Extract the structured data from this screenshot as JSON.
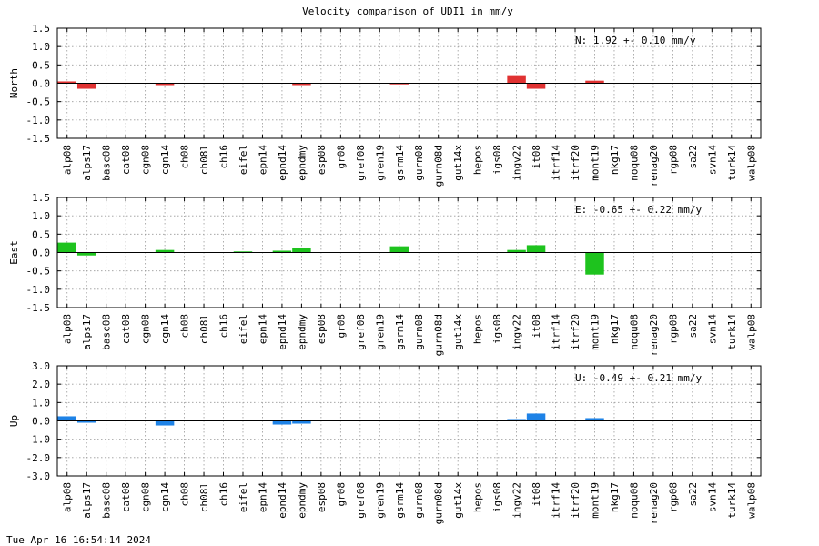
{
  "title": "Velocity comparison of UDI1 in mm/y",
  "timestamp": "Tue Apr 16 16:54:14 2024",
  "chart_data": {
    "type": "bar",
    "categories": [
      "alp08",
      "alps17",
      "basc08",
      "cat08",
      "cgn08",
      "cgn14",
      "ch08",
      "ch08l",
      "ch16",
      "eifel",
      "epn14",
      "epnd14",
      "epndmy",
      "esp08",
      "gr08",
      "gref08",
      "gren19",
      "gsrm14",
      "gurn08",
      "gurn08d",
      "gut14x",
      "hepos",
      "igs08",
      "ingv22",
      "it08",
      "itrf14",
      "itrf20",
      "mont19",
      "nkg17",
      "noqu08",
      "renag20",
      "rgp08",
      "sa22",
      "svn14",
      "turk14",
      "walp08"
    ],
    "grid": true,
    "panels": [
      {
        "ylabel": "North",
        "annotation": "N:   1.92 +-  0.10 mm/y",
        "color": "#e03232",
        "ylim": [
          -1.5,
          1.5
        ],
        "yticks": [
          1.5,
          1.0,
          0.5,
          0.0,
          -0.5,
          -1.0,
          -1.5
        ],
        "values": [
          0.05,
          -0.15,
          0,
          0,
          0,
          -0.05,
          0,
          0,
          0,
          0,
          0,
          0,
          -0.05,
          0,
          0,
          0,
          0,
          -0.03,
          0,
          0,
          0,
          0,
          0,
          0.22,
          -0.15,
          0,
          0,
          0.07,
          0,
          0,
          0,
          0,
          0,
          0,
          0,
          0
        ]
      },
      {
        "ylabel": "East",
        "annotation": "E:  -0.65 +-  0.22 mm/y",
        "color": "#1ec31e",
        "ylim": [
          -1.5,
          1.5
        ],
        "yticks": [
          1.5,
          1.0,
          0.5,
          0.0,
          -0.5,
          -1.0,
          -1.5
        ],
        "values": [
          0.27,
          -0.08,
          0,
          0,
          0,
          0.07,
          0,
          0,
          0,
          0.03,
          0,
          0.05,
          0.12,
          0,
          0,
          0,
          0,
          0.17,
          0,
          0,
          0,
          0,
          0,
          0.07,
          0.2,
          0,
          0,
          -0.6,
          0,
          0,
          0,
          0,
          0,
          0,
          0,
          0
        ]
      },
      {
        "ylabel": "Up",
        "annotation": "U:  -0.49 +-  0.21 mm/y",
        "color": "#1e82e6",
        "ylim": [
          -3.0,
          3.0
        ],
        "yticks": [
          3.0,
          2.0,
          1.0,
          0.0,
          -1.0,
          -2.0,
          -3.0
        ],
        "values": [
          0.25,
          -0.1,
          0,
          0,
          0,
          -0.25,
          0,
          0,
          0,
          0.05,
          0,
          -0.2,
          -0.15,
          0,
          0,
          0,
          0,
          0,
          0,
          0,
          0,
          0,
          0,
          0.1,
          0.4,
          0,
          0,
          0.15,
          0,
          0,
          0,
          0,
          0,
          0,
          0,
          0
        ]
      }
    ]
  }
}
